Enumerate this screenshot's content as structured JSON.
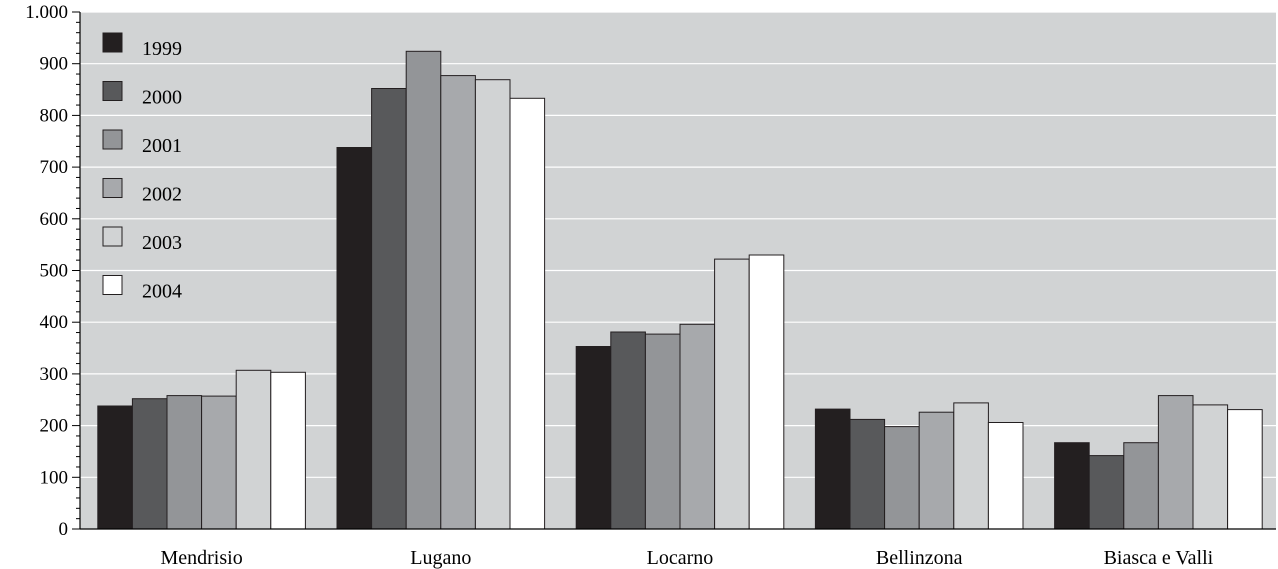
{
  "chart_data": {
    "type": "bar",
    "title": "",
    "xlabel": "",
    "ylabel": "",
    "ylim": [
      0,
      1000
    ],
    "yticks": [
      {
        "value": 0,
        "label": "0"
      },
      {
        "value": 100,
        "label": "100"
      },
      {
        "value": 200,
        "label": "200"
      },
      {
        "value": 300,
        "label": "300"
      },
      {
        "value": 400,
        "label": "400"
      },
      {
        "value": 500,
        "label": "500"
      },
      {
        "value": 600,
        "label": "600"
      },
      {
        "value": 700,
        "label": "700"
      },
      {
        "value": 800,
        "label": "800"
      },
      {
        "value": 900,
        "label": "900"
      },
      {
        "value": 1000,
        "label": "1.000"
      }
    ],
    "minor_tick_step": 20,
    "grid": true,
    "legend_position": "top-left",
    "categories": [
      "Mendrisio",
      "Lugano",
      "Locarno",
      "Bellinzona",
      "Biasca e Valli"
    ],
    "series": [
      {
        "name": "1999",
        "color": "#231f20",
        "values": [
          238,
          738,
          353,
          232,
          167
        ]
      },
      {
        "name": "2000",
        "color": "#58595b",
        "values": [
          252,
          852,
          381,
          212,
          142
        ]
      },
      {
        "name": "2001",
        "color": "#939598",
        "values": [
          258,
          924,
          377,
          198,
          167
        ]
      },
      {
        "name": "2002",
        "color": "#a7a9ac",
        "values": [
          257,
          877,
          396,
          226,
          258
        ]
      },
      {
        "name": "2003",
        "color": "#d1d3d4",
        "values": [
          307,
          869,
          522,
          244,
          240
        ]
      },
      {
        "name": "2004",
        "color": "#ffffff",
        "values": [
          303,
          833,
          530,
          206,
          231
        ]
      }
    ],
    "plot_background": "#d1d3d4",
    "gridline_color": "#ffffff"
  }
}
